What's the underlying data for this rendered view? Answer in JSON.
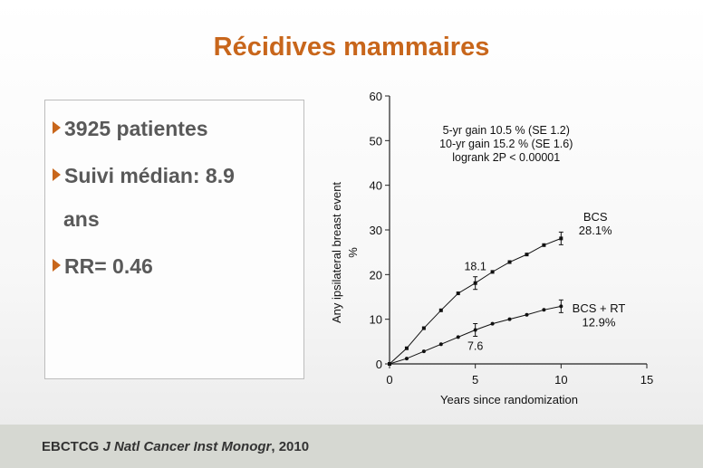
{
  "slide": {
    "title": "Récidives mammaires",
    "bullets": [
      "3925 patientes",
      "Suivi médian: 8.9",
      "RR= 0.46"
    ],
    "bullet_continuation": "ans",
    "footer": {
      "prefix": "EBCTCG ",
      "journal": "J Natl Cancer Inst Monogr",
      "suffix": ", 2010"
    }
  },
  "colors": {
    "title": "#c8661b",
    "bullet_arrow": "#c8661b",
    "text": "#595959",
    "footer_bg": "#d6d8d2"
  },
  "chart_data": {
    "type": "line",
    "xlabel": "Years since randomization",
    "ylabel": "Any ipsilateral breast event",
    "ylabel_unit": "%",
    "xlim": [
      0,
      15
    ],
    "ylim": [
      0,
      60
    ],
    "xticks": [
      0,
      5,
      10,
      15
    ],
    "yticks": [
      0,
      10,
      20,
      30,
      40,
      50,
      60
    ],
    "stats": [
      "5-yr gain 10.5 % (SE 1.2)",
      "10-yr gain 15.2 % (SE 1.6)",
      "logrank 2P < 0.00001"
    ],
    "series": [
      {
        "name": "BCS",
        "end_label": "28.1%",
        "marker": "square",
        "x": [
          0,
          1,
          2,
          3,
          4,
          5,
          6,
          7,
          8,
          9,
          10
        ],
        "y": [
          0,
          3.5,
          8,
          12,
          15.8,
          18.1,
          20.6,
          22.8,
          24.5,
          26.6,
          28.1
        ],
        "annotations": [
          {
            "x": 5,
            "y": 18.1,
            "label": "18.1"
          }
        ],
        "error_bars_at": [
          5,
          10
        ]
      },
      {
        "name": "BCS + RT",
        "end_label": "12.9%",
        "marker": "dot",
        "x": [
          0,
          1,
          2,
          3,
          4,
          5,
          6,
          7,
          8,
          9,
          10
        ],
        "y": [
          0,
          1.2,
          2.8,
          4.4,
          6,
          7.6,
          9,
          10,
          11,
          12.1,
          12.9
        ],
        "annotations": [
          {
            "x": 5,
            "y": 7.6,
            "label": "7.6"
          }
        ],
        "error_bars_at": [
          5,
          10
        ]
      }
    ]
  }
}
